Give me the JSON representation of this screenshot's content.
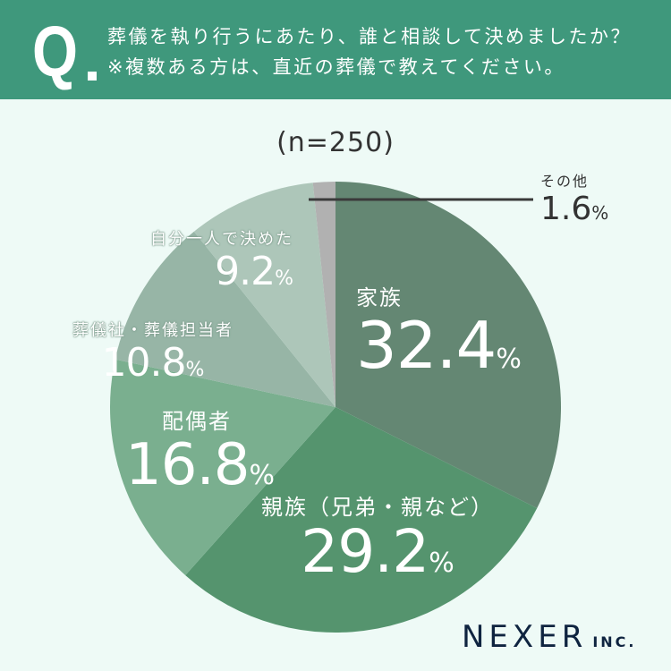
{
  "header": {
    "q_label": "Q",
    "question_line1": "葬儀を執り行うにあたり、誰と相談して決めましたか？",
    "question_line2": "※複数ある方は、直近の葬儀で教えてください。",
    "bg_color": "#3f987c"
  },
  "sample_size": "(n=250)",
  "labels": {
    "family": {
      "name": "家族",
      "value": "32.4",
      "unit": "%"
    },
    "relatives": {
      "name": "親族（兄弟・親など）",
      "value": "29.2",
      "unit": "%"
    },
    "spouse": {
      "name": "配偶者",
      "value": "16.8",
      "unit": "%"
    },
    "funeral_company": {
      "name": "葬儀社・葬儀担当者",
      "value": "10.8",
      "unit": "%"
    },
    "self": {
      "name": "自分一人で決めた",
      "value": "9.2",
      "unit": "%"
    },
    "other": {
      "name": "その他",
      "value": "1.6",
      "unit": "%"
    }
  },
  "logo": {
    "main": "NEXER",
    "suffix": "INC."
  },
  "chart_data": {
    "type": "pie",
    "title": "葬儀を執り行うにあたり、誰と相談して決めましたか？",
    "subtitle": "※複数ある方は、直近の葬儀で教えてください。",
    "sample_size": 250,
    "start_angle": "12 o'clock, clockwise",
    "categories": [
      "家族",
      "親族（兄弟・親など）",
      "配偶者",
      "葬儀社・葬儀担当者",
      "自分一人で決めた",
      "その他"
    ],
    "values": [
      32.4,
      29.2,
      16.8,
      10.8,
      9.2,
      1.6
    ],
    "unit": "%",
    "colors": [
      "#648773",
      "#55946e",
      "#7aaf8f",
      "#97b5a6",
      "#adc6b9",
      "#b1b1b1"
    ]
  }
}
